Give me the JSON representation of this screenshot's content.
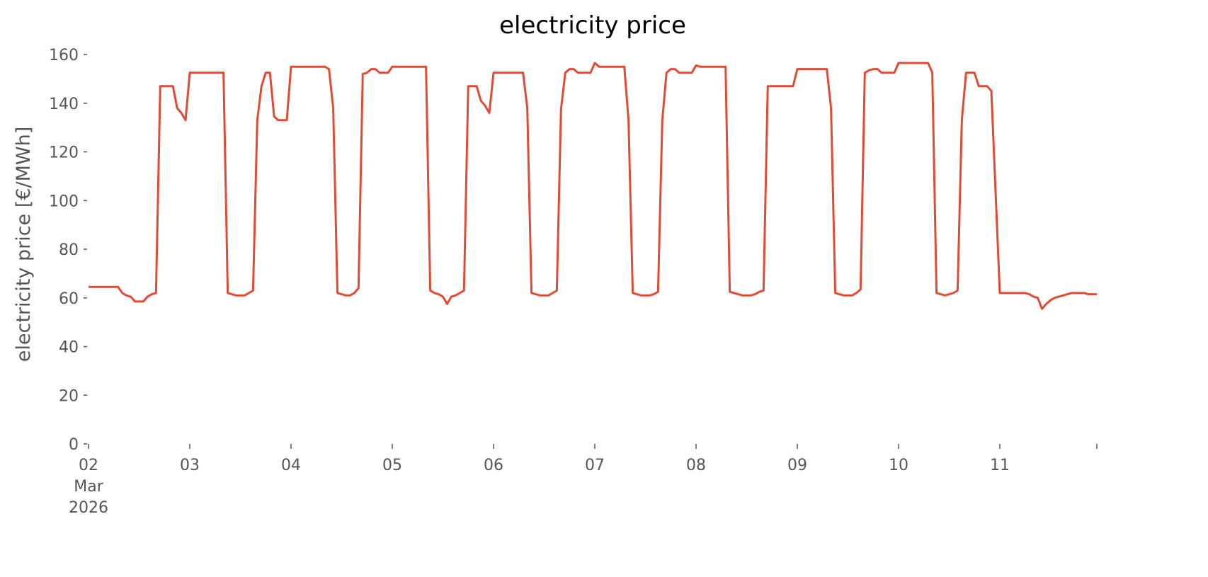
{
  "chart_data": {
    "type": "line",
    "title": "electricity price",
    "ylabel": "electricity price [€/MWh]",
    "xlim": [
      "2026-03-02T00:00",
      "2026-03-11T23:00"
    ],
    "xticks": [
      {
        "value": "2026-03-02T00:00",
        "label": "02\nMar\n2026"
      },
      {
        "value": "2026-03-03T00:00",
        "label": "03"
      },
      {
        "value": "2026-03-04T00:00",
        "label": "04"
      },
      {
        "value": "2026-03-05T00:00",
        "label": "05"
      },
      {
        "value": "2026-03-06T00:00",
        "label": "06"
      },
      {
        "value": "2026-03-07T00:00",
        "label": "07"
      },
      {
        "value": "2026-03-08T00:00",
        "label": "08"
      },
      {
        "value": "2026-03-09T00:00",
        "label": "09"
      },
      {
        "value": "2026-03-10T00:00",
        "label": "10"
      },
      {
        "value": "2026-03-11T00:00",
        "label": "11"
      }
    ],
    "ylim": [
      0,
      160
    ],
    "yticks": [
      0,
      20,
      40,
      60,
      80,
      100,
      120,
      140,
      160
    ],
    "grid": false,
    "color": "#e24a33",
    "x": [
      "2026-03-02T00:00",
      "2026-03-02T07:00",
      "2026-03-02T08:00",
      "2026-03-02T09:00",
      "2026-03-02T10:00",
      "2026-03-02T11:00",
      "2026-03-02T13:00",
      "2026-03-02T14:00",
      "2026-03-02T15:00",
      "2026-03-02T16:00",
      "2026-03-02T17:00",
      "2026-03-02T20:00",
      "2026-03-02T21:00",
      "2026-03-02T22:00",
      "2026-03-02T23:00",
      "2026-03-03T00:00",
      "2026-03-03T08:00",
      "2026-03-03T09:00",
      "2026-03-03T10:00",
      "2026-03-03T11:00",
      "2026-03-03T13:00",
      "2026-03-03T14:00",
      "2026-03-03T15:00",
      "2026-03-03T16:00",
      "2026-03-03T17:00",
      "2026-03-03T18:00",
      "2026-03-03T19:00",
      "2026-03-03T20:00",
      "2026-03-03T21:00",
      "2026-03-03T23:00",
      "2026-03-04T00:00",
      "2026-03-04T08:00",
      "2026-03-04T09:00",
      "2026-03-04T10:00",
      "2026-03-04T11:00",
      "2026-03-04T12:00",
      "2026-03-04T13:00",
      "2026-03-04T14:00",
      "2026-03-04T15:00",
      "2026-03-04T16:00",
      "2026-03-04T17:00",
      "2026-03-04T18:00",
      "2026-03-04T19:00",
      "2026-03-04T20:00",
      "2026-03-04T21:00",
      "2026-03-04T23:00",
      "2026-03-05T00:00",
      "2026-03-05T08:00",
      "2026-03-05T09:00",
      "2026-03-05T10:00",
      "2026-03-05T11:00",
      "2026-03-05T12:00",
      "2026-03-05T13:00",
      "2026-03-05T14:00",
      "2026-03-05T15:00",
      "2026-03-05T16:00",
      "2026-03-05T17:00",
      "2026-03-05T18:00",
      "2026-03-05T20:00",
      "2026-03-05T21:00",
      "2026-03-05T22:00",
      "2026-03-05T23:00",
      "2026-03-06T00:00",
      "2026-03-06T07:00",
      "2026-03-06T08:00",
      "2026-03-06T09:00",
      "2026-03-06T10:00",
      "2026-03-06T11:00",
      "2026-03-06T13:00",
      "2026-03-06T14:00",
      "2026-03-06T15:00",
      "2026-03-06T16:00",
      "2026-03-06T17:00",
      "2026-03-06T18:00",
      "2026-03-06T19:00",
      "2026-03-06T20:00",
      "2026-03-06T23:00",
      "2026-03-07T00:00",
      "2026-03-07T01:00",
      "2026-03-07T07:00",
      "2026-03-07T08:00",
      "2026-03-07T09:00",
      "2026-03-07T10:00",
      "2026-03-07T11:00",
      "2026-03-07T13:00",
      "2026-03-07T14:00",
      "2026-03-07T15:00",
      "2026-03-07T16:00",
      "2026-03-07T17:00",
      "2026-03-07T18:00",
      "2026-03-07T19:00",
      "2026-03-07T20:00",
      "2026-03-07T23:00",
      "2026-03-08T00:00",
      "2026-03-08T01:00",
      "2026-03-08T07:00",
      "2026-03-08T08:00",
      "2026-03-08T09:00",
      "2026-03-08T10:00",
      "2026-03-08T11:00",
      "2026-03-08T13:00",
      "2026-03-08T14:00",
      "2026-03-08T15:00",
      "2026-03-08T16:00",
      "2026-03-08T17:00",
      "2026-03-08T23:00",
      "2026-03-09T00:00",
      "2026-03-09T07:00",
      "2026-03-09T08:00",
      "2026-03-09T09:00",
      "2026-03-09T10:00",
      "2026-03-09T11:00",
      "2026-03-09T13:00",
      "2026-03-09T14:00",
      "2026-03-09T15:00",
      "2026-03-09T16:00",
      "2026-03-09T17:00",
      "2026-03-09T18:00",
      "2026-03-09T19:00",
      "2026-03-09T20:00",
      "2026-03-09T23:00",
      "2026-03-10T00:00",
      "2026-03-10T07:00",
      "2026-03-10T08:00",
      "2026-03-10T09:00",
      "2026-03-10T10:00",
      "2026-03-10T11:00",
      "2026-03-10T12:00",
      "2026-03-10T13:00",
      "2026-03-10T14:00",
      "2026-03-10T15:00",
      "2026-03-10T16:00",
      "2026-03-10T18:00",
      "2026-03-10T19:00",
      "2026-03-10T21:00",
      "2026-03-10T22:00",
      "2026-03-11T00:00",
      "2026-03-11T06:00",
      "2026-03-11T07:00",
      "2026-03-11T08:00",
      "2026-03-11T09:00",
      "2026-03-11T10:00",
      "2026-03-11T11:00",
      "2026-03-11T12:00",
      "2026-03-11T13:00",
      "2026-03-11T15:00",
      "2026-03-11T17:00",
      "2026-03-11T20:00",
      "2026-03-11T21:00",
      "2026-03-11T23:00"
    ],
    "values": [
      64.5,
      64.5,
      62,
      61,
      60.5,
      58.5,
      58.5,
      60.5,
      61.5,
      62,
      147,
      147,
      138,
      136,
      133,
      152.5,
      152.5,
      62,
      61.5,
      61,
      61,
      62,
      63,
      133,
      147,
      152.5,
      152.5,
      134.5,
      133,
      133,
      155,
      155,
      154,
      138,
      62,
      61.5,
      61,
      61,
      62,
      64,
      152,
      152.5,
      154,
      154,
      152.5,
      152.5,
      155,
      155,
      63,
      62,
      61.5,
      60.5,
      57.5,
      60.5,
      61,
      62,
      63,
      147,
      147,
      141,
      139,
      136,
      152.5,
      152.5,
      138,
      62,
      61.5,
      61,
      61,
      62,
      63,
      137.5,
      152.5,
      154,
      154,
      152.5,
      152.5,
      156.5,
      155,
      155,
      133,
      62,
      61.5,
      61,
      61,
      61.5,
      62.5,
      133,
      152.5,
      154,
      154,
      152.5,
      152.5,
      155.5,
      155,
      155,
      62.5,
      62,
      61.5,
      61,
      61,
      61.5,
      62.5,
      63,
      147,
      147,
      154,
      154,
      138,
      62,
      61.5,
      61,
      61,
      62,
      63.5,
      152.5,
      153.5,
      154,
      154,
      152.5,
      152.5,
      156.5,
      156.5,
      152.5,
      62,
      61.5,
      61,
      61.5,
      62,
      63,
      133,
      152.5,
      152.5,
      147,
      147,
      145,
      62,
      62,
      61.5,
      60.5,
      60,
      55.5,
      57.5,
      59,
      60,
      61,
      62,
      62,
      61.5,
      61.5
    ]
  }
}
